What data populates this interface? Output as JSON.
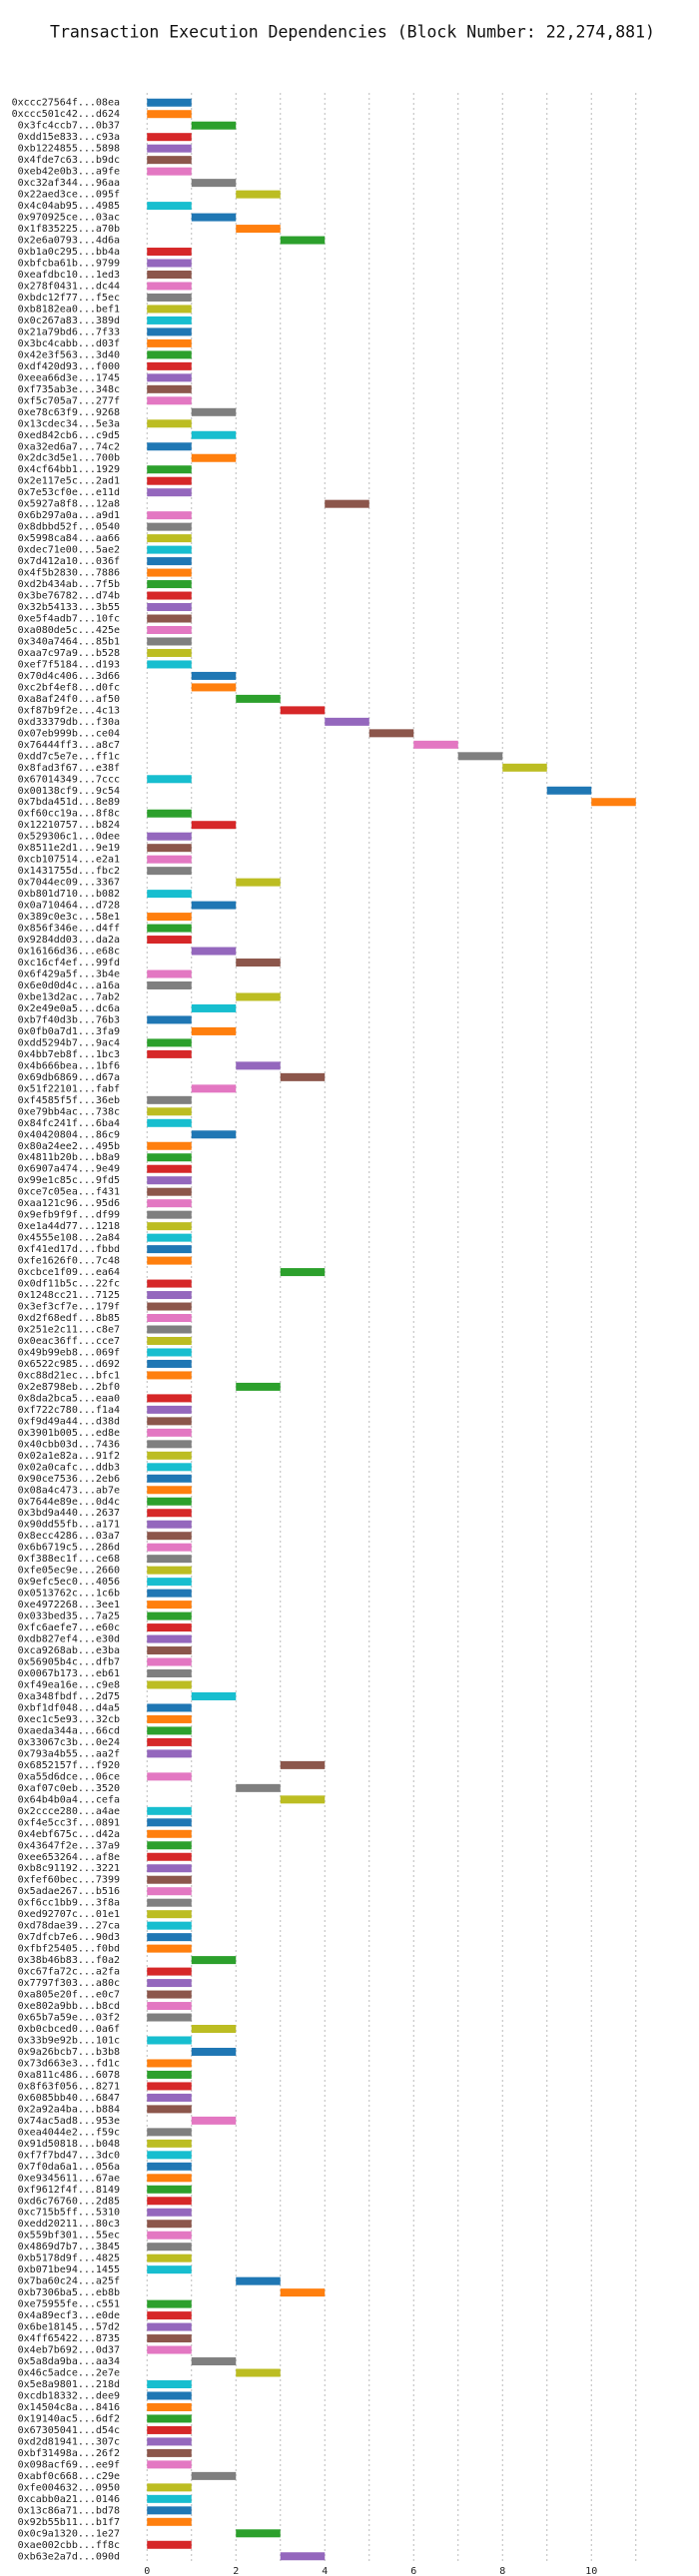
{
  "chart_data": {
    "type": "gantt",
    "title": "Transaction Execution Dependencies (Block Number: 22,274,881)",
    "categories": [
      "0xccc27564f...08ea",
      "0xccc501c42...d624",
      "0x3fc4ccb7...0b37",
      "0xdd15e833...c93a",
      "0xb1224855...5898",
      "0x4fde7c63...b9dc",
      "0xeb42e0b3...a9fe",
      "0xc32af344...96aa",
      "0x22aed3ce...095f",
      "0x4c04ab95...4985",
      "0x970925ce...03ac",
      "0x1f835225...a70b",
      "0x2e6a0793...4d6a",
      "0xb1a0c295...bb4a",
      "0xbfcba61b...9799",
      "0xeafdbc10...1ed3",
      "0x278f0431...dc44",
      "0xbdc12f77...f5ec",
      "0xb8182ea0...bef1",
      "0x0c267a83...389d",
      "0x21a79bd6...7f33",
      "0x3bc4cabb...d03f",
      "0x42e3f563...3d40",
      "0xdf420d93...f000",
      "0xeea66d3e...1745",
      "0xf735ab3e...348c",
      "0xf5c705a7...277f",
      "0xe78c63f9...9268",
      "0x13cdec34...5e3a",
      "0xed842cb6...c9d5",
      "0xa32ed6a7...74c2",
      "0x2dc3d5e1...700b",
      "0x4cf64bb1...1929",
      "0x2e117e5c...2ad1",
      "0x7e53cf0e...e11d",
      "0x5927a8f8...12a8",
      "0x6b297a0a...a9d1",
      "0x8dbbd52f...0540",
      "0x5998ca84...aa66",
      "0xdec71e00...5ae2",
      "0x7d412a10...036f",
      "0x4f5b2830...7886",
      "0xd2b434ab...7f5b",
      "0x3be76782...d74b",
      "0x32b54133...3b55",
      "0xe5f4adb7...10fc",
      "0xa080de5c...425e",
      "0x340a7464...85b1",
      "0xaa7c97a9...b528",
      "0xef7f5184...d193",
      "0x70d4c406...3d66",
      "0xc2bf4ef8...d0fc",
      "0xa8af24f0...af50",
      "0xf87b9f2e...4c13",
      "0xd33379db...f30a",
      "0x07eb999b...ce04",
      "0x76444ff3...a8c7",
      "0xdd7c5e7e...ff1c",
      "0x8fad3f67...e38f",
      "0x67014349...7ccc",
      "0x00138cf9...9c54",
      "0x7bda451d...8e89",
      "0xf60cc19a...8f8c",
      "0x12210757...b824",
      "0x529306c1...0dee",
      "0x8511e2d1...9e19",
      "0xcb107514...e2a1",
      "0x1431755d...fbc2",
      "0x7044ec09...3367",
      "0xb801d710...b082",
      "0x0a710464...d728",
      "0x389c0e3c...58e1",
      "0x856f346e...d4ff",
      "0x9284dd03...da2a",
      "0x16166d36...e68c",
      "0xc16cf4ef...99fd",
      "0x6f429a5f...3b4e",
      "0x6e0d0d4c...a16a",
      "0xbe13d2ac...7ab2",
      "0x2e49e0a5...dc6a",
      "0xb7f40d3b...76b3",
      "0x0fb0a7d1...3fa9",
      "0xdd5294b7...9ac4",
      "0x4bb7eb8f...1bc3",
      "0x4b666bea...1bf6",
      "0x69db6869...d67a",
      "0x51f22101...fabf",
      "0xf4585f5f...36eb",
      "0xe79bb4ac...738c",
      "0x84fc241f...6ba4",
      "0x40420804...86c9",
      "0x80a24ee2...495b",
      "0x4811b20b...b8a9",
      "0x6907a474...9e49",
      "0x99e1c85c...9fd5",
      "0xce7c05ea...f431",
      "0xaa121c96...95d6",
      "0x9efb9f9f...df99",
      "0xe1a44d77...1218",
      "0x4555e108...2a84",
      "0xf41ed17d...fbbd",
      "0xfe1626f0...7c48",
      "0xcbce1f09...ea64",
      "0x0df11b5c...22fc",
      "0x1248cc21...7125",
      "0x3ef3cf7e...179f",
      "0xd2f68edf...8b85",
      "0x251e2c11...c8e7",
      "0x0eac36ff...cce7",
      "0x49b99eb8...069f",
      "0x6522c985...d692",
      "0xc88d21ec...bfc1",
      "0x2e8798eb...2bf0",
      "0x8da2bca5...eaa0",
      "0xf722c780...f1a4",
      "0xf9d49a44...d38d",
      "0x3901b005...ed8e",
      "0x40cbb03d...7436",
      "0x02a1e82a...91f2",
      "0x02a0cafc...ddb3",
      "0x90ce7536...2eb6",
      "0x08a4c473...ab7e",
      "0x7644e89e...0d4c",
      "0x3bd9a440...2637",
      "0x90dd55fb...a171",
      "0x8ecc4286...03a7",
      "0x6b6719c5...286d",
      "0xf388ec1f...ce68",
      "0xfe05ec9e...2660",
      "0x9efc5ec0...4056",
      "0x0513762c...1c6b",
      "0xe4972268...3ee1",
      "0x033bed35...7a25",
      "0xfc6aefe7...e60c",
      "0xdb827ef4...e30d",
      "0xca9268ab...e3ba",
      "0x56905b4c...dfb7",
      "0x0067b173...eb61",
      "0xf49ea16e...c9e8",
      "0xa348fbdf...2d75",
      "0xbf1df048...d4a5",
      "0xec1c5e93...32cb",
      "0xaeda344a...66cd",
      "0x33067c3b...0e24",
      "0x793a4b55...aa2f",
      "0x6852157f...f920",
      "0xa55d6dce...06ce",
      "0xaf07c0eb...3520",
      "0x64b4b0a4...cefa",
      "0x2ccce280...a4ae",
      "0xf4e5cc3f...0891",
      "0x4ebf675c...d42a",
      "0x43647f2e...37a9",
      "0xee653264...af8e",
      "0xb8c91192...3221",
      "0xfef60bec...7399",
      "0x5adae267...b516",
      "0xf6cc1bb9...3f8a",
      "0xed92707c...01e1",
      "0xd78dae39...27ca",
      "0x7dfcb7e6...90d3",
      "0xfbf25405...f0bd",
      "0x38b46b83...f0a2",
      "0xc67fa72c...a2fa",
      "0x7797f303...a80c",
      "0xa805e20f...e0c7",
      "0xe802a9bb...b8cd",
      "0x65b7a59e...03f2",
      "0xb0cbced0...0a6f",
      "0x33b9e92b...101c",
      "0x9a26bcb7...b3b8",
      "0x73d663e3...fd1c",
      "0xa811c486...6078",
      "0x8f63f056...8271",
      "0x6085bb40...6847",
      "0x2a92a4ba...b884",
      "0x74ac5ad8...953e",
      "0xea4044e2...f59c",
      "0x91d50818...b048",
      "0xf7f7bd47...3dc0",
      "0x7f0da6a1...056a",
      "0xe9345611...67ae",
      "0xf9612f4f...8149",
      "0xd6c76760...2d85",
      "0xc715b5ff...5310",
      "0xedd20211...80c3",
      "0x559bf301...55ec",
      "0x4869d7b7...3845",
      "0xb5178d9f...4825",
      "0xb071be94...1455",
      "0x7ba60c24...a25f",
      "0xb7306ba5...eb8b",
      "0xe75955fe...c551",
      "0x4a89ecf3...e0de",
      "0x6be18145...57d2",
      "0x4ff65422...8735",
      "0x4eb7b692...0d37",
      "0x5a8da9ba...aa34",
      "0x46c5adce...2e7e",
      "0x5e8a9801...218d",
      "0xcdb18332...dee9",
      "0x14504c8a...8416",
      "0x19140ac5...6df2",
      "0x67305041...d54c",
      "0xd2d81941...307c",
      "0xbf31498a...26f2",
      "0x098acf69...ee9f",
      "0xabf0c668...c29e",
      "0xfe004632...0950",
      "0xcabb0a21...0146",
      "0x13c86a71...bd78",
      "0x92b55b11...b1f7",
      "0x0c9a1320...1e27",
      "0xae002cbb...ff8c",
      "0xb63e2a7d...090d"
    ],
    "values": [
      0,
      0,
      1,
      0,
      0,
      0,
      0,
      1,
      2,
      0,
      1,
      2,
      3,
      0,
      0,
      0,
      0,
      0,
      0,
      0,
      0,
      0,
      0,
      0,
      0,
      0,
      0,
      1,
      0,
      1,
      0,
      1,
      0,
      0,
      0,
      4,
      0,
      0,
      0,
      0,
      0,
      0,
      0,
      0,
      0,
      0,
      0,
      0,
      0,
      0,
      1,
      1,
      2,
      3,
      4,
      5,
      6,
      7,
      8,
      0,
      9,
      10,
      0,
      1,
      0,
      0,
      0,
      0,
      2,
      0,
      1,
      0,
      0,
      0,
      1,
      2,
      0,
      0,
      2,
      1,
      0,
      1,
      0,
      0,
      2,
      3,
      1,
      0,
      0,
      0,
      1,
      0,
      0,
      0,
      0,
      0,
      0,
      0,
      0,
      0,
      0,
      0,
      3,
      0,
      0,
      0,
      0,
      0,
      0,
      0,
      0,
      0,
      2,
      0,
      0,
      0,
      0,
      0,
      0,
      0,
      0,
      0,
      0,
      0,
      0,
      0,
      0,
      0,
      0,
      0,
      0,
      0,
      0,
      0,
      0,
      0,
      0,
      0,
      0,
      1,
      0,
      0,
      0,
      0,
      0,
      3,
      0,
      2,
      3,
      0,
      0,
      0,
      0,
      0,
      0,
      0,
      0,
      0,
      0,
      0,
      0,
      0,
      1,
      0,
      0,
      0,
      0,
      0,
      1,
      0,
      1,
      0,
      0,
      0,
      0,
      0,
      1,
      0,
      0,
      0,
      0,
      0,
      0,
      0,
      0,
      0,
      0,
      0,
      0,
      0,
      2,
      3,
      0,
      0,
      0,
      0,
      0,
      1,
      2,
      0,
      0,
      0,
      0,
      0,
      0,
      0,
      0,
      1,
      0,
      0,
      0,
      0,
      2,
      0,
      3
    ],
    "colors": [
      "#1f77b4",
      "#ff7f0e",
      "#2ca02c",
      "#d62728",
      "#9467bd",
      "#8c564b",
      "#e377c2",
      "#7f7f7f",
      "#bcbd22",
      "#17becf"
    ],
    "xlim": [
      -0.5,
      11.5
    ],
    "xticks": [
      0,
      2,
      4,
      6,
      8,
      10
    ],
    "minor_xticks": [
      1,
      3,
      5,
      7,
      9,
      11
    ],
    "grid": true
  }
}
